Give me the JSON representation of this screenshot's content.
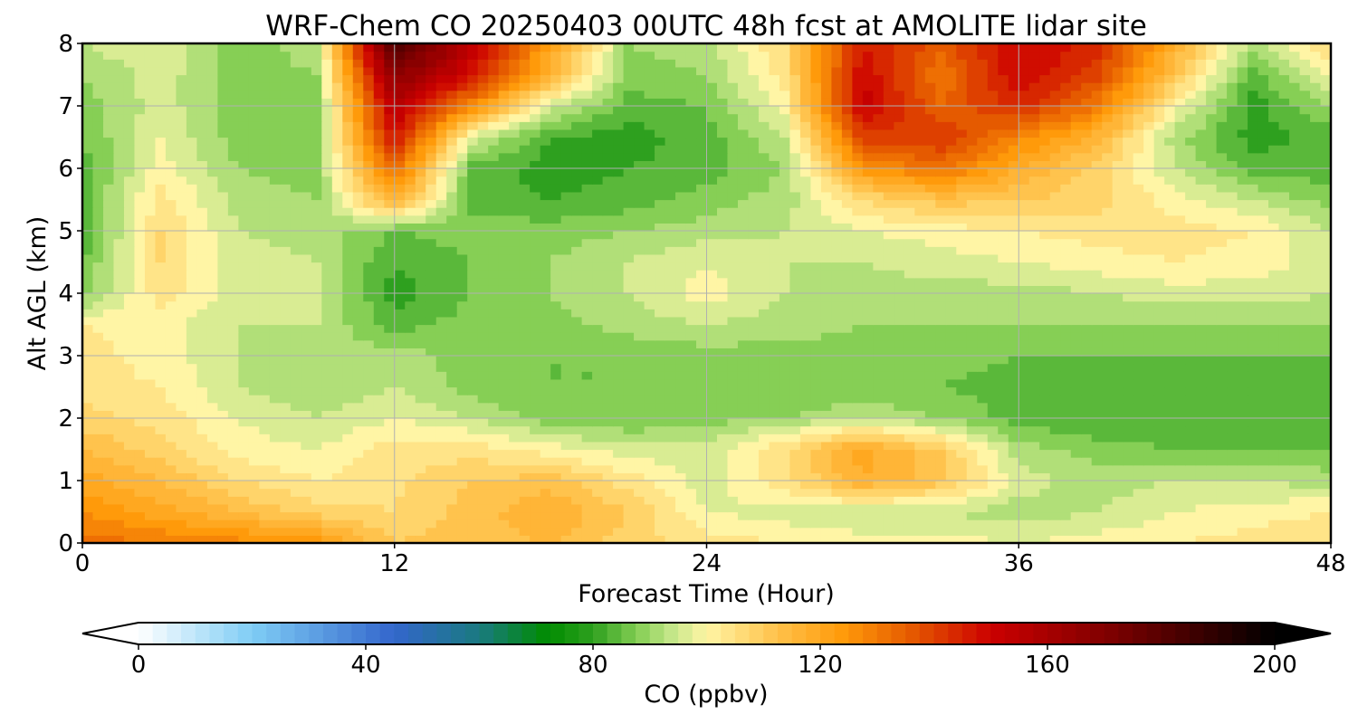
{
  "chart_data": {
    "type": "heatmap",
    "title": "WRF-Chem CO  20250403 00UTC 48h fcst at AMOLITE lidar site",
    "xlabel": "Forecast Time (Hour)",
    "ylabel": "Alt AGL (km)",
    "xlim": [
      0,
      48
    ],
    "ylim": [
      0,
      8
    ],
    "xticks": [
      0,
      12,
      24,
      36,
      48
    ],
    "yticks": [
      0,
      1,
      2,
      3,
      4,
      5,
      6,
      7,
      8
    ],
    "grid": true,
    "x": [
      0,
      3,
      6,
      9,
      12,
      15,
      18,
      21,
      24,
      27,
      30,
      33,
      36,
      39,
      42,
      45,
      48
    ],
    "y": [
      0,
      0.5,
      1,
      1.5,
      2,
      2.5,
      3,
      3.5,
      4,
      4.5,
      5,
      5.5,
      6,
      6.5,
      7,
      7.5,
      8
    ],
    "z": [
      [
        132,
        130,
        128,
        124,
        110,
        112,
        114,
        108,
        104,
        102,
        100,
        100,
        98,
        100,
        102,
        104,
        106
      ],
      [
        126,
        120,
        114,
        108,
        106,
        112,
        118,
        110,
        98,
        96,
        94,
        94,
        92,
        94,
        98,
        100,
        102
      ],
      [
        120,
        114,
        106,
        102,
        105,
        110,
        112,
        104,
        96,
        104,
        118,
        112,
        96,
        92,
        94,
        94,
        92
      ],
      [
        114,
        108,
        100,
        98,
        104,
        104,
        100,
        96,
        96,
        106,
        120,
        110,
        92,
        88,
        86,
        86,
        86
      ],
      [
        108,
        104,
        98,
        94,
        98,
        94,
        88,
        86,
        88,
        90,
        94,
        90,
        84,
        82,
        82,
        84,
        84
      ],
      [
        104,
        102,
        94,
        90,
        94,
        88,
        86,
        86,
        86,
        86,
        86,
        86,
        84,
        84,
        84,
        84,
        84
      ],
      [
        104,
        100,
        94,
        92,
        92,
        88,
        86,
        86,
        88,
        88,
        88,
        88,
        86,
        86,
        86,
        86,
        86
      ],
      [
        102,
        100,
        94,
        94,
        84,
        88,
        88,
        92,
        94,
        92,
        90,
        90,
        90,
        90,
        90,
        90,
        90
      ],
      [
        88,
        104,
        96,
        96,
        80,
        86,
        90,
        94,
        100,
        94,
        92,
        92,
        92,
        94,
        96,
        96,
        94
      ],
      [
        86,
        106,
        96,
        94,
        82,
        86,
        90,
        94,
        98,
        94,
        94,
        96,
        98,
        100,
        102,
        100,
        96
      ],
      [
        82,
        106,
        94,
        92,
        86,
        88,
        88,
        90,
        92,
        94,
        98,
        100,
        102,
        104,
        104,
        102,
        94
      ],
      [
        84,
        104,
        92,
        90,
        118,
        84,
        82,
        84,
        88,
        92,
        106,
        112,
        110,
        108,
        100,
        94,
        88
      ],
      [
        84,
        100,
        90,
        88,
        134,
        84,
        80,
        82,
        84,
        90,
        124,
        132,
        118,
        108,
        94,
        84,
        84
      ],
      [
        86,
        98,
        88,
        88,
        148,
        96,
        82,
        80,
        84,
        94,
        140,
        142,
        128,
        116,
        92,
        80,
        84
      ],
      [
        88,
        96,
        88,
        88,
        156,
        126,
        96,
        84,
        86,
        100,
        152,
        134,
        144,
        130,
        100,
        80,
        90
      ],
      [
        90,
        96,
        88,
        90,
        168,
        148,
        116,
        88,
        90,
        104,
        150,
        130,
        150,
        140,
        112,
        84,
        100
      ],
      [
        94,
        98,
        88,
        92,
        186,
        152,
        122,
        90,
        92,
        106,
        146,
        136,
        150,
        144,
        118,
        92,
        108
      ]
    ],
    "colorbar": {
      "label": "CO  (ppbv)",
      "min": 0,
      "max": 200,
      "ticks": [
        0,
        40,
        80,
        120,
        160,
        200
      ],
      "extend": "both",
      "stops": [
        {
          "v": 0,
          "color": "#ffffff"
        },
        {
          "v": 20,
          "color": "#7fcdf5"
        },
        {
          "v": 45,
          "color": "#3366cc"
        },
        {
          "v": 60,
          "color": "#1a7a80"
        },
        {
          "v": 72,
          "color": "#008c00"
        },
        {
          "v": 80,
          "color": "#2ea01f"
        },
        {
          "v": 88,
          "color": "#86cf55"
        },
        {
          "v": 94,
          "color": "#c6e78a"
        },
        {
          "v": 100,
          "color": "#fff5a5"
        },
        {
          "v": 112,
          "color": "#ffc34d"
        },
        {
          "v": 124,
          "color": "#ff9a0a"
        },
        {
          "v": 136,
          "color": "#e55a00"
        },
        {
          "v": 150,
          "color": "#cc0000"
        },
        {
          "v": 172,
          "color": "#7a0000"
        },
        {
          "v": 200,
          "color": "#000000"
        }
      ]
    }
  }
}
